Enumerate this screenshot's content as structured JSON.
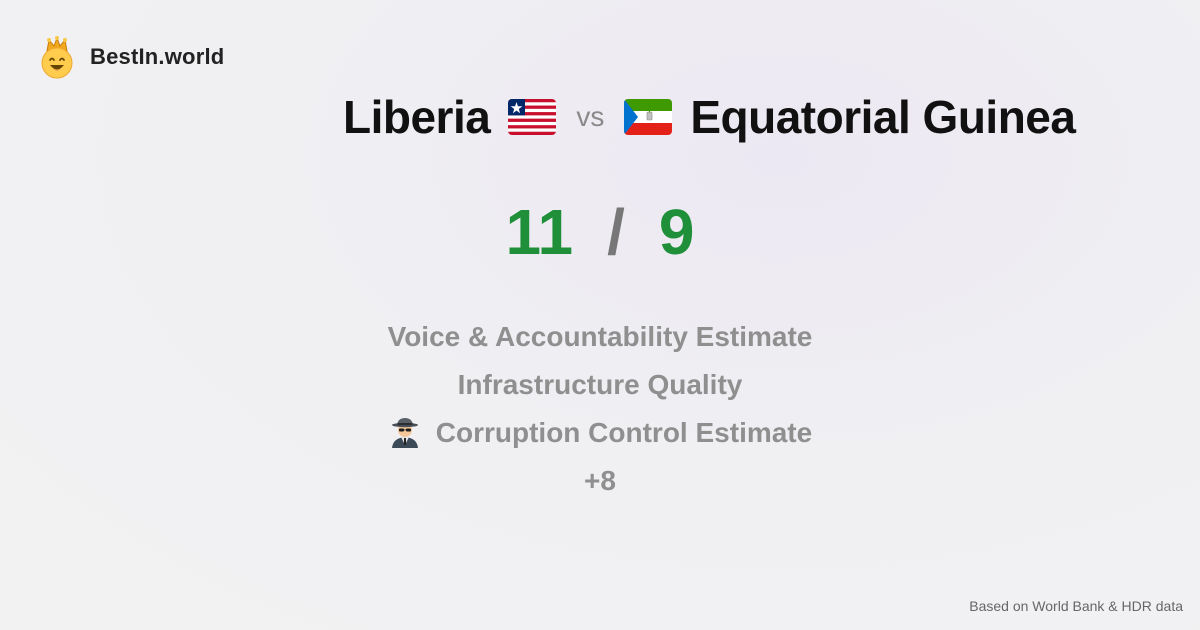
{
  "brand": {
    "name": "BestIn.world",
    "logo_icon": "crowned-smiley-icon"
  },
  "comparison": {
    "left_country": "Liberia",
    "left_flag": "liberia-flag-icon",
    "vs_label": "vs",
    "right_country": "Equatorial Guinea",
    "right_flag": "equatorial-guinea-flag-icon"
  },
  "scores": {
    "left": "11",
    "separator": "/",
    "right": "9",
    "color": "#1f8f3a"
  },
  "metrics": [
    {
      "label": "Voice & Accountability Estimate"
    },
    {
      "label": "Infrastructure Quality"
    },
    {
      "label": "Corruption Control Estimate",
      "icon": "detective-icon"
    }
  ],
  "more_label": "+8",
  "footer": {
    "source": "Based on World Bank & HDR data"
  }
}
